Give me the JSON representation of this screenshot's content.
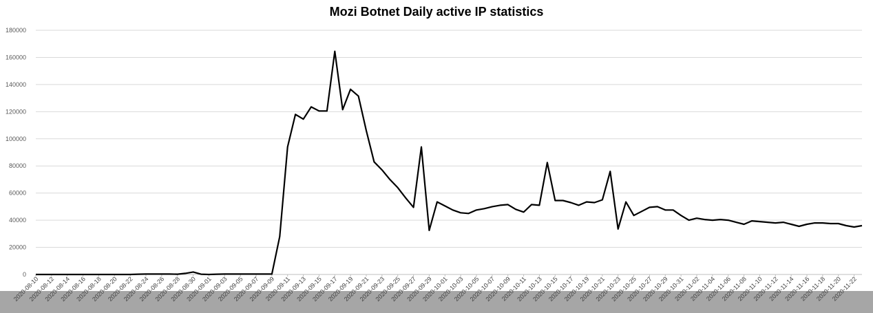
{
  "chart_data": {
    "type": "line",
    "title": "Mozi Botnet Daily active IP statistics",
    "xlabel": "",
    "ylabel": "",
    "ylim": [
      0,
      180000
    ],
    "y_ticks": [
      0,
      20000,
      40000,
      60000,
      80000,
      100000,
      120000,
      140000,
      160000,
      180000
    ],
    "y_tick_labels": [
      "0",
      "20000",
      "40000",
      "60000",
      "80000",
      "100000",
      "120000",
      "140000",
      "160000",
      "180000"
    ],
    "grid": true,
    "legend": "none",
    "colors": {
      "line": "#000000",
      "grid": "#d9d9d9",
      "axis_band": "#a6a6a6"
    },
    "x_tick_labels": [
      "2020-08-10",
      "2020-08-12",
      "2020-08-14",
      "2020-08-16",
      "2020-08-18",
      "2020-08-20",
      "2020-08-22",
      "2020-08-24",
      "2020-08-26",
      "2020-08-28",
      "2020-08-30",
      "2020-09-01",
      "2020-09-03",
      "2020-09-05",
      "2020-09-07",
      "2020-09-09",
      "2020-09-11",
      "2020-09-13",
      "2020-09-15",
      "2020-09-17",
      "2020-09-19",
      "2020-09-21",
      "2020-09-23",
      "2020-09-25",
      "2020-09-27",
      "2020-09-29",
      "2020-10-01",
      "2020-10-03",
      "2020-10-05",
      "2020-10-07",
      "2020-10-09",
      "2020-10-11",
      "2020-10-13",
      "2020-10-15",
      "2020-10-17",
      "2020-10-19",
      "2020-10-21",
      "2020-10-23",
      "2020-10-25",
      "2020-10-27",
      "2020-10-29",
      "2020-10-31",
      "2020-11-02",
      "2020-11-04",
      "2020-11-06",
      "2020-11-08",
      "2020-11-10",
      "2020-11-12",
      "2020-11-14",
      "2020-11-16",
      "2020-11-18",
      "2020-11-20",
      "2020-11-22"
    ],
    "x": [
      "2020-08-10",
      "2020-08-11",
      "2020-08-12",
      "2020-08-13",
      "2020-08-14",
      "2020-08-15",
      "2020-08-16",
      "2020-08-17",
      "2020-08-18",
      "2020-08-19",
      "2020-08-20",
      "2020-08-21",
      "2020-08-22",
      "2020-08-23",
      "2020-08-24",
      "2020-08-25",
      "2020-08-26",
      "2020-08-27",
      "2020-08-28",
      "2020-08-29",
      "2020-08-30",
      "2020-08-31",
      "2020-09-01",
      "2020-09-02",
      "2020-09-03",
      "2020-09-04",
      "2020-09-05",
      "2020-09-06",
      "2020-09-07",
      "2020-09-08",
      "2020-09-09",
      "2020-09-10",
      "2020-09-11",
      "2020-09-12",
      "2020-09-13",
      "2020-09-14",
      "2020-09-15",
      "2020-09-16",
      "2020-09-17",
      "2020-09-18",
      "2020-09-19",
      "2020-09-20",
      "2020-09-21",
      "2020-09-22",
      "2020-09-23",
      "2020-09-24",
      "2020-09-25",
      "2020-09-26",
      "2020-09-27",
      "2020-09-28",
      "2020-09-29",
      "2020-09-30",
      "2020-10-01",
      "2020-10-02",
      "2020-10-03",
      "2020-10-04",
      "2020-10-05",
      "2020-10-06",
      "2020-10-07",
      "2020-10-08",
      "2020-10-09",
      "2020-10-10",
      "2020-10-11",
      "2020-10-12",
      "2020-10-13",
      "2020-10-14",
      "2020-10-15",
      "2020-10-16",
      "2020-10-17",
      "2020-10-18",
      "2020-10-19",
      "2020-10-20",
      "2020-10-21",
      "2020-10-22",
      "2020-10-23",
      "2020-10-24",
      "2020-10-25",
      "2020-10-26",
      "2020-10-27",
      "2020-10-28",
      "2020-10-29",
      "2020-10-30",
      "2020-10-31",
      "2020-11-01",
      "2020-11-02",
      "2020-11-03",
      "2020-11-04",
      "2020-11-05",
      "2020-11-06",
      "2020-11-07",
      "2020-11-08",
      "2020-11-09",
      "2020-11-10",
      "2020-11-11",
      "2020-11-12",
      "2020-11-13",
      "2020-11-14",
      "2020-11-15",
      "2020-11-16",
      "2020-11-17",
      "2020-11-18",
      "2020-11-19",
      "2020-11-20",
      "2020-11-21",
      "2020-11-22",
      "2020-11-23"
    ],
    "series": [
      {
        "values": [
          0,
          0,
          0,
          0,
          0,
          0,
          0,
          0,
          0,
          0,
          0,
          0,
          0,
          200,
          300,
          300,
          300,
          300,
          200,
          800,
          1800,
          200,
          0,
          200,
          300,
          300,
          300,
          300,
          300,
          300,
          300,
          28000,
          94000,
          118000,
          114500,
          123500,
          120500,
          120500,
          164500,
          121500,
          136500,
          131500,
          106000,
          83000,
          77000,
          70000,
          64000,
          56500,
          49500,
          94000,
          32500,
          53500,
          50500,
          47500,
          45500,
          45000,
          47500,
          48500,
          50000,
          51000,
          51500,
          48000,
          46000,
          51500,
          51000,
          82500,
          54500,
          54500,
          53000,
          51000,
          53500,
          53000,
          55000,
          76000,
          33500,
          53500,
          43500,
          46500,
          49500,
          50000,
          47500,
          47500,
          43500,
          40000,
          41500,
          40500,
          40000,
          40500,
          40000,
          38500,
          37000,
          39500,
          39000,
          38500,
          38000,
          38500,
          37000,
          35500,
          37000,
          38000,
          38000,
          37500,
          37500,
          36000,
          35000,
          36000
        ]
      }
    ]
  }
}
